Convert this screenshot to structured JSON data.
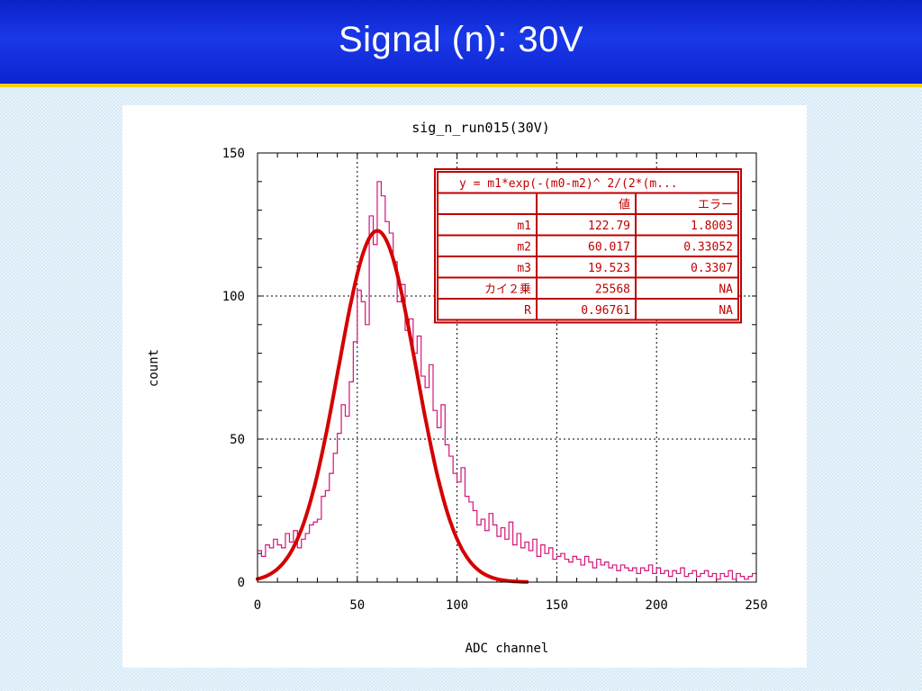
{
  "slide": {
    "title": "Signal (n):  30V"
  },
  "chart_data": {
    "type": "line",
    "title": "sig_n_run015(30V)",
    "xlabel": "ADC channel",
    "ylabel": "count",
    "xlim": [
      0,
      250
    ],
    "ylim": [
      0,
      150
    ],
    "x_ticks": [
      "0",
      "50",
      "100",
      "150",
      "200",
      "250"
    ],
    "y_ticks": [
      "0",
      "50",
      "100",
      "150"
    ],
    "grid": true,
    "colors": {
      "histogram": "#d4147a",
      "fit": "#d40000",
      "table_border": "#c00000"
    },
    "series": [
      {
        "type": "histogram",
        "bin_width": 2,
        "x": [
          0,
          2,
          4,
          6,
          8,
          10,
          12,
          14,
          16,
          18,
          20,
          22,
          24,
          26,
          28,
          30,
          32,
          34,
          36,
          38,
          40,
          42,
          44,
          46,
          48,
          50,
          52,
          54,
          56,
          58,
          60,
          62,
          64,
          66,
          68,
          70,
          72,
          74,
          76,
          78,
          80,
          82,
          84,
          86,
          88,
          90,
          92,
          94,
          96,
          98,
          100,
          102,
          104,
          106,
          108,
          110,
          112,
          114,
          116,
          118,
          120,
          122,
          124,
          126,
          128,
          130,
          132,
          134,
          136,
          138,
          140,
          142,
          144,
          146,
          148,
          150,
          152,
          154,
          156,
          158,
          160,
          162,
          164,
          166,
          168,
          170,
          172,
          174,
          176,
          178,
          180,
          182,
          184,
          186,
          188,
          190,
          192,
          194,
          196,
          198,
          200,
          202,
          204,
          206,
          208,
          210,
          212,
          214,
          216,
          218,
          220,
          222,
          224,
          226,
          228,
          230,
          232,
          234,
          236,
          238,
          240,
          242,
          244,
          246,
          248
        ],
        "values": [
          11,
          9,
          13,
          12,
          15,
          13,
          12,
          17,
          14,
          18,
          12,
          15,
          17,
          20,
          21,
          22,
          30,
          32,
          38,
          45,
          52,
          62,
          58,
          70,
          84,
          102,
          98,
          90,
          128,
          118,
          140,
          135,
          126,
          122,
          112,
          98,
          104,
          88,
          92,
          80,
          86,
          72,
          68,
          76,
          60,
          54,
          62,
          48,
          44,
          38,
          35,
          40,
          30,
          28,
          25,
          20,
          22,
          18,
          24,
          20,
          16,
          19,
          15,
          21,
          13,
          17,
          12,
          14,
          11,
          15,
          9,
          13,
          10,
          12,
          8,
          9,
          10,
          8,
          7,
          9,
          8,
          6,
          9,
          7,
          5,
          8,
          6,
          7,
          5,
          6,
          4,
          6,
          5,
          4,
          5,
          3,
          5,
          4,
          6,
          3,
          5,
          3,
          4,
          2,
          4,
          3,
          5,
          2,
          3,
          4,
          2,
          3,
          4,
          2,
          3,
          1,
          3,
          2,
          4,
          1,
          3,
          2,
          1,
          2,
          3
        ]
      },
      {
        "type": "fit",
        "name": "gaussian fit",
        "x_range": [
          0,
          135
        ],
        "params": {
          "m1": 122.79,
          "m2": 60.017,
          "m3": 19.523
        }
      }
    ],
    "fit_table": {
      "title": "y = m1*exp(-(m0-m2)^ 2/(2*(m...",
      "headers": [
        "",
        "値",
        "エラー"
      ],
      "rows": [
        [
          "m1",
          "122.79",
          "1.8003"
        ],
        [
          "m2",
          "60.017",
          "0.33052"
        ],
        [
          "m3",
          "19.523",
          "0.3307"
        ],
        [
          "カイ２乗",
          "25568",
          "NA"
        ],
        [
          "R",
          "0.96761",
          "NA"
        ]
      ]
    }
  }
}
